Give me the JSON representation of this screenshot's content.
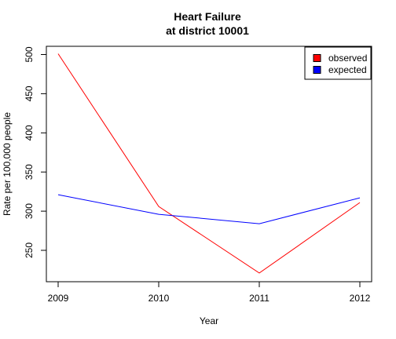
{
  "chart_data": {
    "type": "line",
    "title_line1": "Heart Failure",
    "title_line2": "at district 10001",
    "xlabel": "Year",
    "ylabel": "Rate per 100,000 people",
    "x": [
      2009,
      2010,
      2011,
      2012
    ],
    "xticks": [
      "2009",
      "2010",
      "2011",
      "2012"
    ],
    "yticks": [
      "250",
      "300",
      "350",
      "400",
      "450",
      "500"
    ],
    "ylim": [
      210,
      510
    ],
    "grid": false,
    "legend_position": "top-right",
    "series": [
      {
        "name": "observed",
        "color": "#ff0000",
        "values": [
          501,
          306,
          221,
          311
        ]
      },
      {
        "name": "expected",
        "color": "#0000ff",
        "values": [
          321,
          296,
          284,
          317
        ]
      }
    ]
  }
}
